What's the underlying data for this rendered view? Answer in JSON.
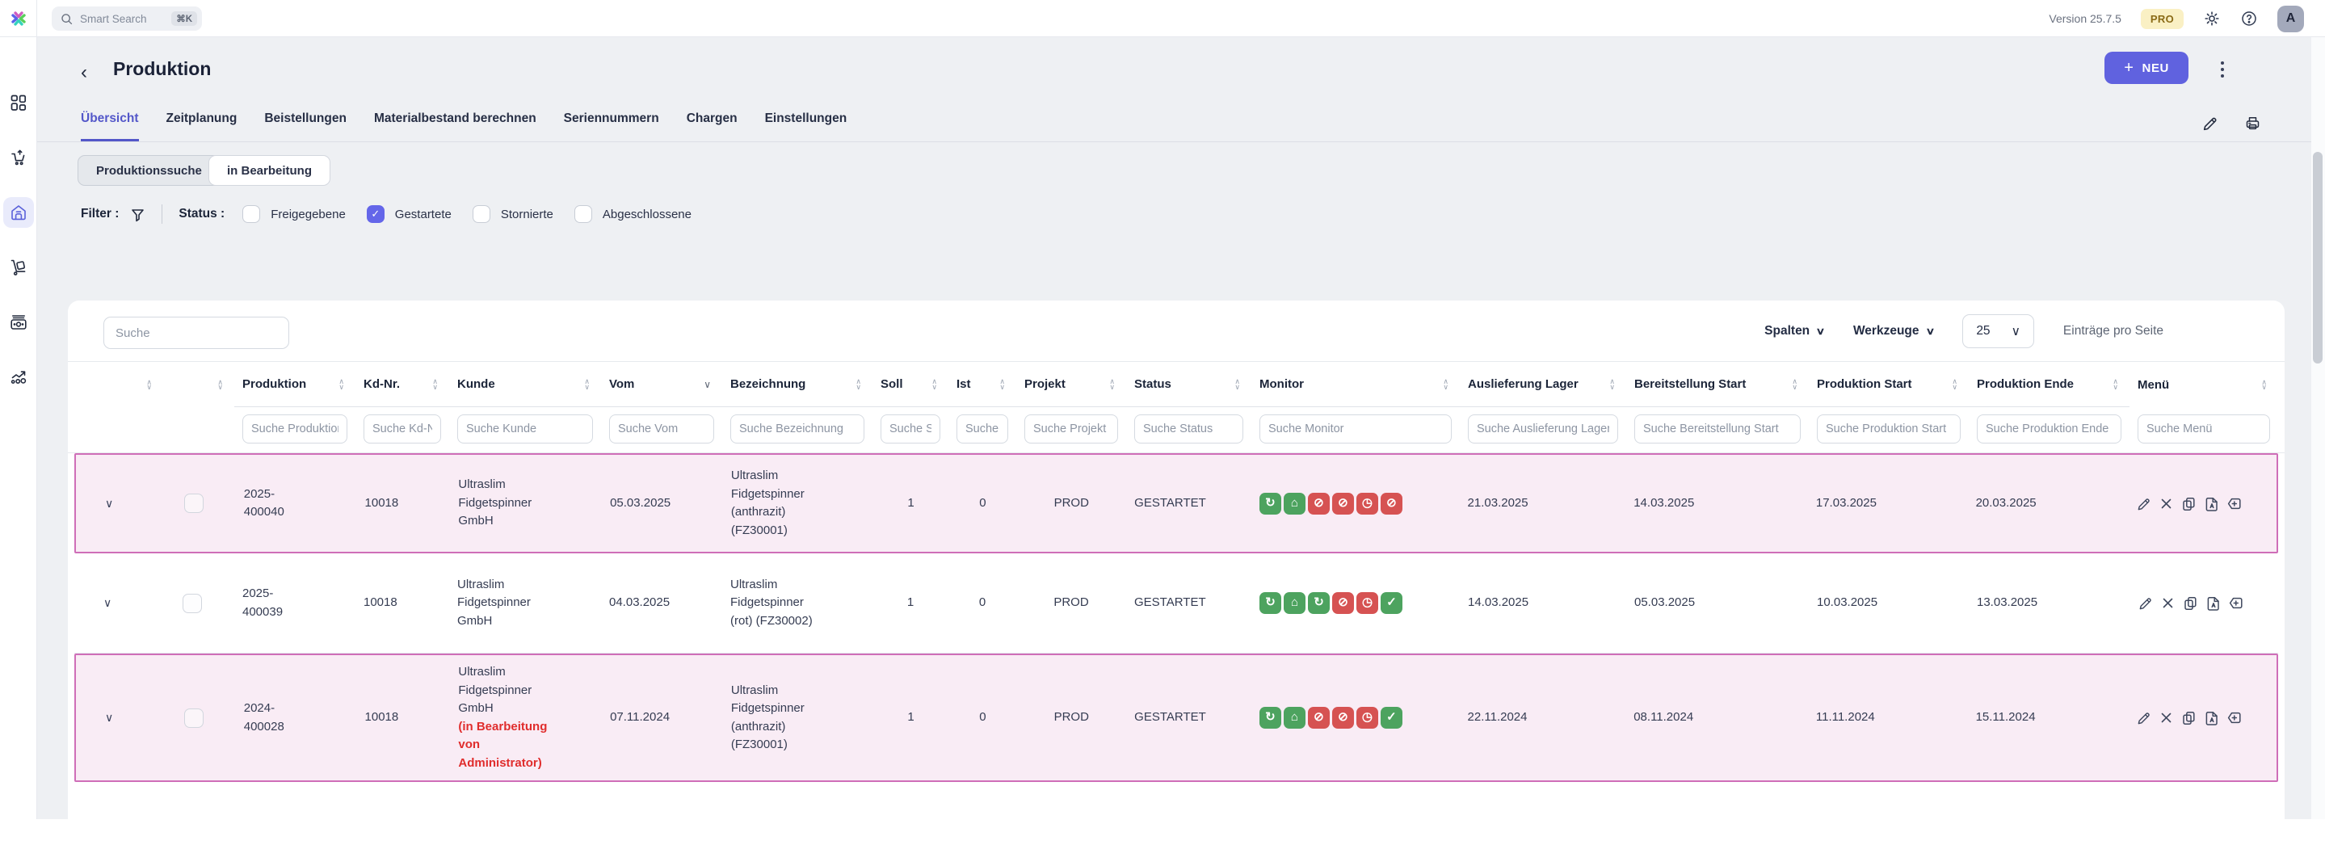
{
  "topbar": {
    "search_placeholder": "Smart Search",
    "search_shortcut": "⌘K",
    "version": "Version 25.7.5",
    "pro_badge": "PRO",
    "avatar_letter": "A"
  },
  "sidebar": {
    "items": [
      {
        "name": "dashboard",
        "active": false
      },
      {
        "name": "shopping-cart",
        "active": false
      },
      {
        "name": "warehouse",
        "active": true
      },
      {
        "name": "logistics-dolly",
        "active": false
      },
      {
        "name": "finance",
        "active": false
      },
      {
        "name": "statistics",
        "active": false
      }
    ]
  },
  "header": {
    "title": "Produktion",
    "new_button": "NEU",
    "new_plus": "+",
    "back": "‹"
  },
  "tabs": [
    {
      "label": "Übersicht",
      "active": true
    },
    {
      "label": "Zeitplanung",
      "active": false
    },
    {
      "label": "Beistellungen",
      "active": false
    },
    {
      "label": "Materialbestand berechnen",
      "active": false
    },
    {
      "label": "Seriennummern",
      "active": false
    },
    {
      "label": "Chargen",
      "active": false
    },
    {
      "label": "Einstellungen",
      "active": false
    }
  ],
  "view_buttons": {
    "produktionssuche": "Produktionssuche",
    "in_bearbeitung": "in Bearbeitung"
  },
  "filter": {
    "label": "Filter :",
    "status_label": "Status :",
    "checkboxes": [
      {
        "label": "Freigegebene",
        "checked": false
      },
      {
        "label": "Gestartete",
        "checked": true
      },
      {
        "label": "Stornierte",
        "checked": false
      },
      {
        "label": "Abgeschlossene",
        "checked": false
      }
    ],
    "check_glyph": "✓"
  },
  "toolbar": {
    "search_placeholder": "Suche",
    "spalten": "Spalten",
    "werkzeuge": "Werkzeuge",
    "page_size": "25",
    "entries_label": "Einträge pro Seite"
  },
  "colors": {
    "accent": "#6062df",
    "row_highlight_border": "#cf6eb8",
    "row_highlight_bg": "#f9ecf5",
    "status_green": "#4da35f",
    "status_red": "#d65252",
    "pro_badge_bg": "#faf0c4",
    "note_red": "#e02d2d"
  },
  "table": {
    "columns": [
      {
        "key": "expand",
        "label": "",
        "placeholder": null,
        "sort": "both"
      },
      {
        "key": "check",
        "label": "",
        "placeholder": null,
        "sort": "both"
      },
      {
        "key": "produktion",
        "label": "Produktion",
        "placeholder": "Suche Produktion",
        "sort": "both"
      },
      {
        "key": "kdnr",
        "label": "Kd-Nr.",
        "placeholder": "Suche Kd-Nr.",
        "sort": "both"
      },
      {
        "key": "kunde",
        "label": "Kunde",
        "placeholder": "Suche Kunde",
        "sort": "both"
      },
      {
        "key": "vom",
        "label": "Vom",
        "placeholder": "Suche Vom",
        "sort": "desc"
      },
      {
        "key": "bezeichnung",
        "label": "Bezeichnung",
        "placeholder": "Suche Bezeichnung",
        "sort": "both"
      },
      {
        "key": "soll",
        "label": "Soll",
        "placeholder": "Suche Soll",
        "sort": "both"
      },
      {
        "key": "ist",
        "label": "Ist",
        "placeholder": "Suche Ist",
        "sort": "both"
      },
      {
        "key": "projekt",
        "label": "Projekt",
        "placeholder": "Suche Projekt",
        "sort": "both"
      },
      {
        "key": "status",
        "label": "Status",
        "placeholder": "Suche Status",
        "sort": "both"
      },
      {
        "key": "monitor",
        "label": "Monitor",
        "placeholder": "Suche Monitor",
        "sort": "both"
      },
      {
        "key": "auslieferung",
        "label": "Auslieferung Lager",
        "placeholder": "Suche Auslieferung Lager",
        "sort": "both"
      },
      {
        "key": "bereitstellung",
        "label": "Bereitstellung Start",
        "placeholder": "Suche Bereitstellung Start",
        "sort": "both"
      },
      {
        "key": "prodstart",
        "label": "Produktion Start",
        "placeholder": "Suche Produktion Start",
        "sort": "both"
      },
      {
        "key": "prodende",
        "label": "Produktion Ende",
        "placeholder": "Suche Produktion Ende",
        "sort": "both"
      },
      {
        "key": "menu",
        "label": "Menü",
        "placeholder": "Suche Menü",
        "sort": "both"
      }
    ],
    "rows": [
      {
        "expand": "∨",
        "produktion": "2025-400040",
        "kdnr": "10018",
        "kunde": "Ultraslim Fidgetspinner GmbH",
        "kunde_note": "",
        "vom": "05.03.2025",
        "bezeichnung": "Ultraslim Fidgetspinner (anthrazit) (FZ30001)",
        "soll": "1",
        "ist": "0",
        "projekt": "PROD",
        "status": "GESTARTET",
        "monitor_icons": [
          {
            "name": "truck-sync",
            "color": "green",
            "glyph": "↻"
          },
          {
            "name": "warehouse",
            "color": "green",
            "glyph": "⌂"
          },
          {
            "name": "truck-time-blocked",
            "color": "red",
            "glyph": "⊘"
          },
          {
            "name": "truck-out-blocked",
            "color": "red",
            "glyph": "⊘"
          },
          {
            "name": "time-blocked",
            "color": "red",
            "glyph": "◷"
          },
          {
            "name": "truck-blocked",
            "color": "red",
            "glyph": "⊘"
          }
        ],
        "auslieferung": "21.03.2025",
        "bereitstellung": "14.03.2025",
        "prodstart": "17.03.2025",
        "prodende": "20.03.2025",
        "highlighted": true
      },
      {
        "expand": "∨",
        "produktion": "2025-400039",
        "kdnr": "10018",
        "kunde": "Ultraslim Fidgetspinner GmbH",
        "kunde_note": "",
        "vom": "04.03.2025",
        "bezeichnung": "Ultraslim Fidgetspinner (rot) (FZ30002)",
        "soll": "1",
        "ist": "0",
        "projekt": "PROD",
        "status": "GESTARTET",
        "monitor_icons": [
          {
            "name": "truck-sync",
            "color": "green",
            "glyph": "↻"
          },
          {
            "name": "warehouse",
            "color": "green",
            "glyph": "⌂"
          },
          {
            "name": "truck-sync",
            "color": "green",
            "glyph": "↻"
          },
          {
            "name": "truck-out-blocked",
            "color": "red",
            "glyph": "⊘"
          },
          {
            "name": "time-blocked",
            "color": "red",
            "glyph": "◷"
          },
          {
            "name": "truck-ok",
            "color": "green",
            "glyph": "✓"
          }
        ],
        "auslieferung": "14.03.2025",
        "bereitstellung": "05.03.2025",
        "prodstart": "10.03.2025",
        "prodende": "13.03.2025",
        "highlighted": false
      },
      {
        "expand": "∨",
        "produktion": "2024-400028",
        "kdnr": "10018",
        "kunde": "Ultraslim Fidgetspinner GmbH",
        "kunde_note": "(in Bearbeitung von Administrator)",
        "vom": "07.11.2024",
        "bezeichnung": "Ultraslim Fidgetspinner (anthrazit) (FZ30001)",
        "soll": "1",
        "ist": "0",
        "projekt": "PROD",
        "status": "GESTARTET",
        "monitor_icons": [
          {
            "name": "truck-sync",
            "color": "green",
            "glyph": "↻"
          },
          {
            "name": "warehouse",
            "color": "green",
            "glyph": "⌂"
          },
          {
            "name": "truck-blocked",
            "color": "red",
            "glyph": "⊘"
          },
          {
            "name": "truck-out-blocked",
            "color": "red",
            "glyph": "⊘"
          },
          {
            "name": "time-blocked",
            "color": "red",
            "glyph": "◷"
          },
          {
            "name": "truck-ok",
            "color": "green",
            "glyph": "✓"
          }
        ],
        "auslieferung": "22.11.2024",
        "bereitstellung": "08.11.2024",
        "prodstart": "11.11.2024",
        "prodende": "15.11.2024",
        "highlighted": true
      }
    ]
  }
}
